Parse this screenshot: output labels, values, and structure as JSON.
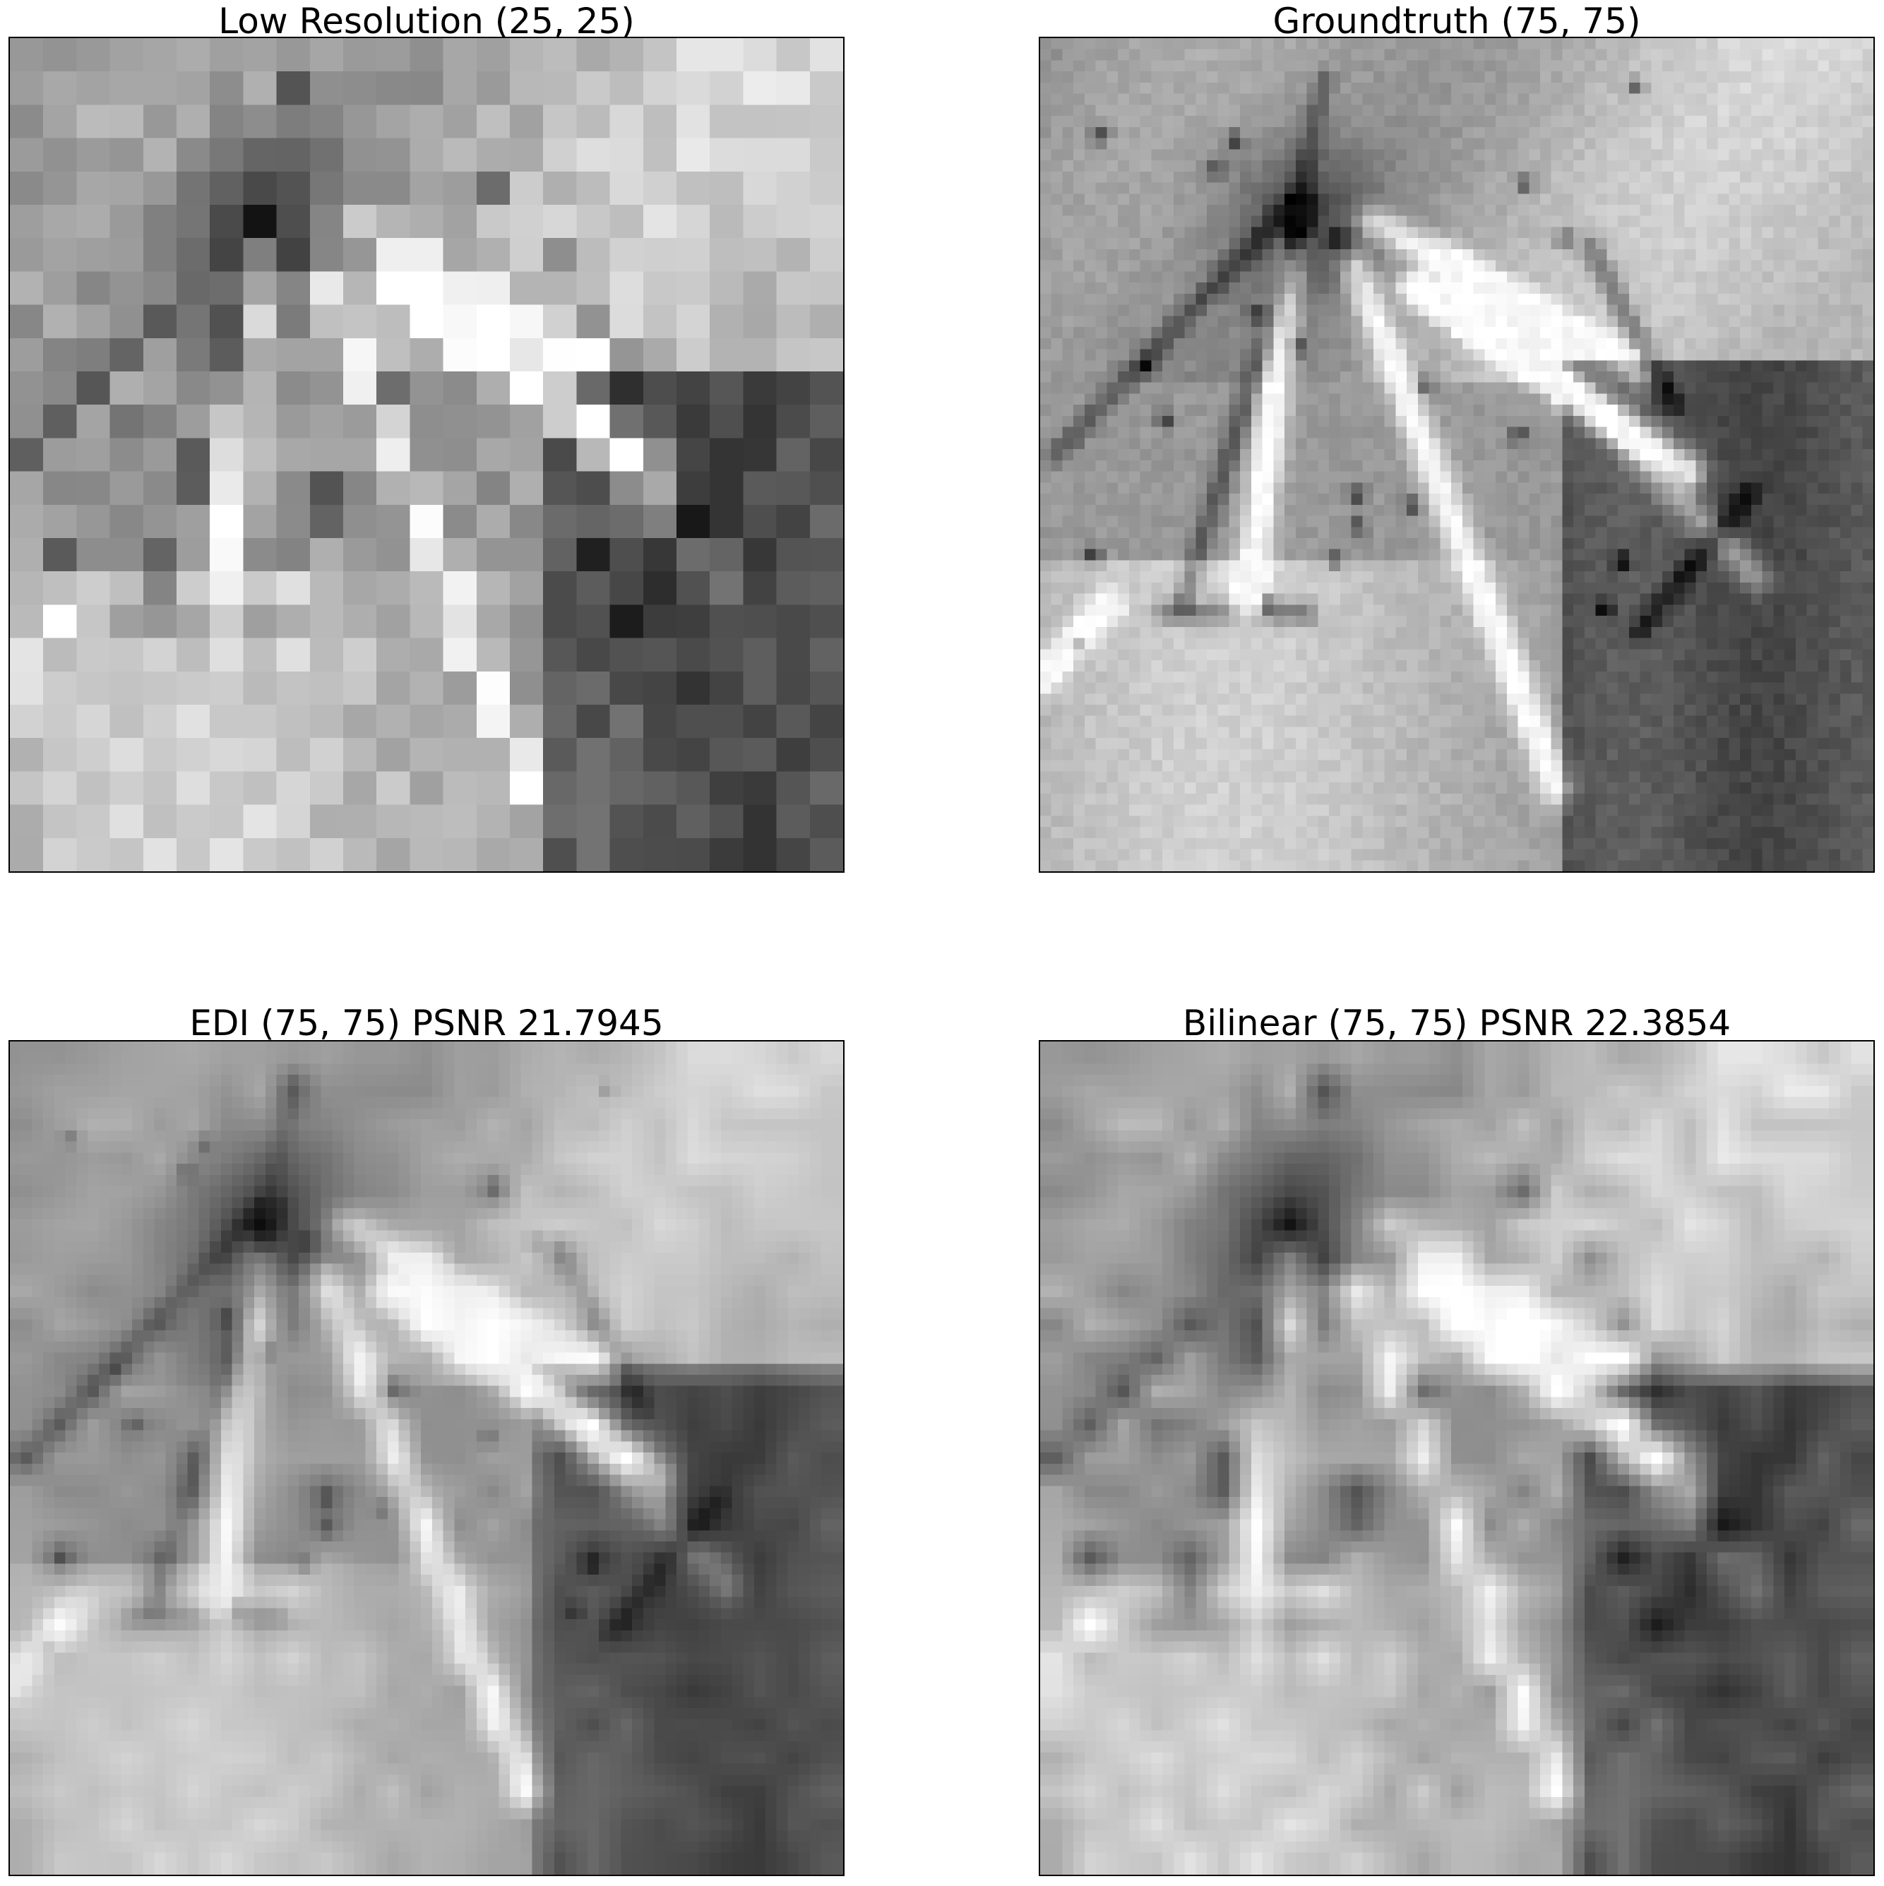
{
  "panels": [
    {
      "id": "low-resolution",
      "title": "Low Resolution (25, 25)",
      "grid": 25
    },
    {
      "id": "groundtruth",
      "title": "Groundtruth (75, 75)",
      "grid": 75
    },
    {
      "id": "edi",
      "title": "EDI (75, 75) PSNR 21.7945",
      "grid": 75
    },
    {
      "id": "bilinear",
      "title": "Bilinear (75, 75) PSNR 22.3854",
      "grid": 75
    }
  ],
  "colormap": "gray"
}
